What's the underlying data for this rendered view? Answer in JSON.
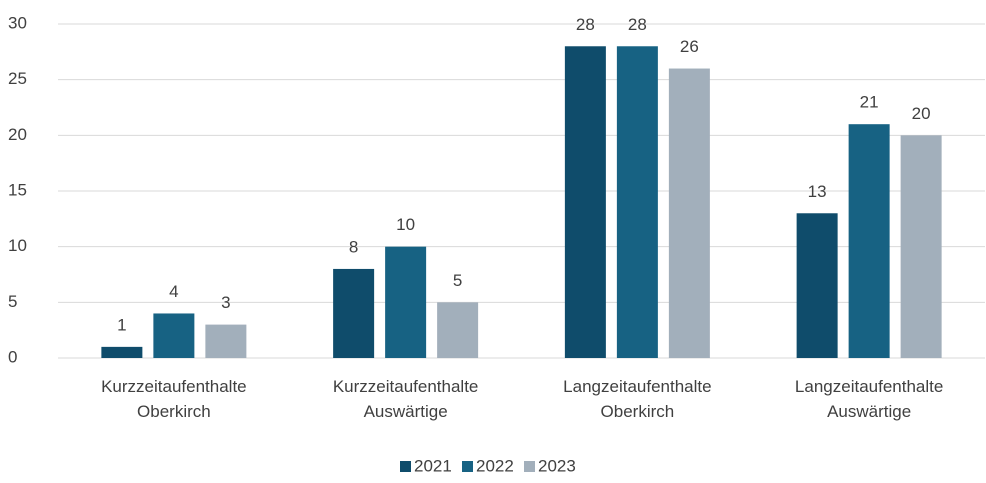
{
  "chart_data": {
    "type": "bar",
    "categories": [
      "Kurzzeitaufenthalte Oberkirch",
      "Kurzzeitaufenthalte Auswärtige",
      "Langzeitaufenthalte Oberkirch",
      "Langzeitaufenthalte Auswärtige"
    ],
    "series": [
      {
        "name": "2021",
        "color": "#0f4c6b",
        "values": [
          1,
          8,
          28,
          13
        ]
      },
      {
        "name": "2022",
        "color": "#176283",
        "values": [
          4,
          10,
          28,
          21
        ]
      },
      {
        "name": "2023",
        "color": "#a2afbb",
        "values": [
          3,
          5,
          26,
          20
        ]
      }
    ],
    "ylim": [
      0,
      30
    ],
    "yticks": [
      0,
      5,
      10,
      15,
      20,
      25,
      30
    ],
    "grid": true,
    "legend": "bottom"
  }
}
